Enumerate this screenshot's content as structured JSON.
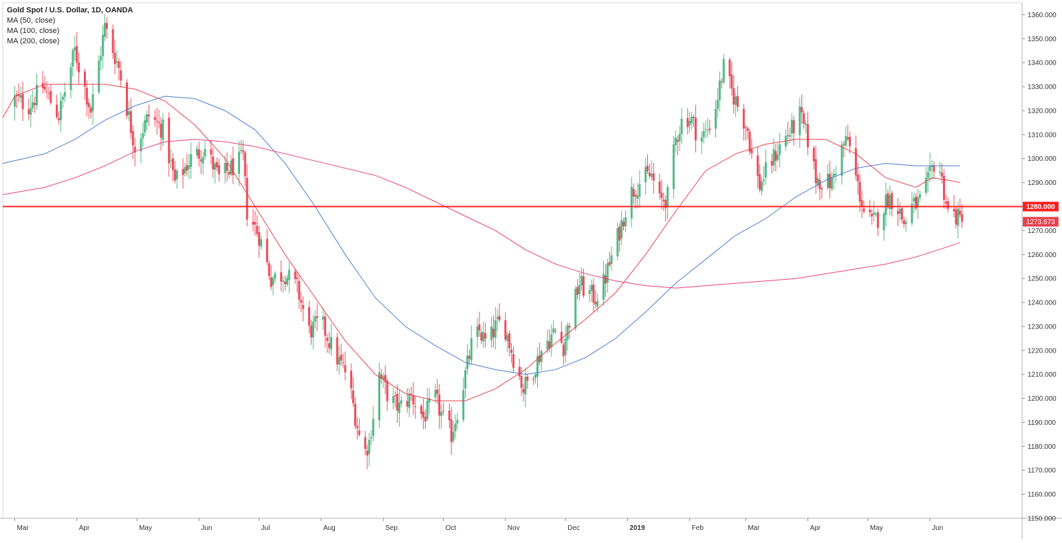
{
  "chart_data": {
    "type": "candlestick",
    "title": "Gold Spot / U.S. Dollar, 1D, OANDA",
    "indicators": [
      {
        "name": "MA (50, close)",
        "color": "#e8424e"
      },
      {
        "name": "MA (100, close)",
        "color": "#4a7bd0"
      },
      {
        "name": "MA (200, close)",
        "color": "#ea3f7a"
      }
    ],
    "ylim": [
      1150,
      1365
    ],
    "y_ticks": [
      "1360.000",
      "1350.000",
      "1340.000",
      "1330.000",
      "1320.000",
      "1310.000",
      "1300.000",
      "1290.000",
      "1280.000",
      "1270.000",
      "1260.000",
      "1250.000",
      "1240.000",
      "1230.000",
      "1220.000",
      "1210.000",
      "1200.000",
      "1190.000",
      "1180.000",
      "1170.000",
      "1160.000",
      "1150.000"
    ],
    "x_ticks": [
      {
        "label": "Mar",
        "day": 0,
        "bold": false
      },
      {
        "label": "Apr",
        "day": 31,
        "bold": false
      },
      {
        "label": "May",
        "day": 61,
        "bold": false
      },
      {
        "label": "Jun",
        "day": 92,
        "bold": false
      },
      {
        "label": "Jul",
        "day": 122,
        "bold": false
      },
      {
        "label": "Aug",
        "day": 153,
        "bold": false
      },
      {
        "label": "Sep",
        "day": 184,
        "bold": false
      },
      {
        "label": "Oct",
        "day": 214,
        "bold": false
      },
      {
        "label": "Nov",
        "day": 245,
        "bold": false
      },
      {
        "label": "Dec",
        "day": 275,
        "bold": false
      },
      {
        "label": "2019",
        "day": 306,
        "bold": true
      },
      {
        "label": "Feb",
        "day": 337,
        "bold": false
      },
      {
        "label": "Mar",
        "day": 365,
        "bold": false
      },
      {
        "label": "Apr",
        "day": 396,
        "bold": false
      },
      {
        "label": "May",
        "day": 426,
        "bold": false
      },
      {
        "label": "Jun",
        "day": 457,
        "bold": false
      }
    ],
    "xlim_days": [
      -6,
      503
    ],
    "horizontal_line": {
      "value": 1280,
      "label": "1280.000",
      "color": "#ff1f1f"
    },
    "last_price": {
      "value": 1273.673,
      "label": "1273.673",
      "color": "#e8424e"
    },
    "up_color": "#53b987",
    "down_color": "#eb4d5c",
    "close_path": [
      [
        0,
        1325
      ],
      [
        7,
        1322
      ],
      [
        14,
        1330
      ],
      [
        22,
        1318
      ],
      [
        30,
        1345
      ],
      [
        38,
        1320
      ],
      [
        45,
        1355
      ],
      [
        52,
        1338
      ],
      [
        60,
        1305
      ],
      [
        67,
        1318
      ],
      [
        74,
        1312
      ],
      [
        80,
        1290
      ],
      [
        88,
        1300
      ],
      [
        95,
        1304
      ],
      [
        102,
        1292
      ],
      [
        108,
        1296
      ],
      [
        114,
        1300
      ],
      [
        116,
        1278
      ],
      [
        122,
        1268
      ],
      [
        128,
        1250
      ],
      [
        135,
        1252
      ],
      [
        141,
        1246
      ],
      [
        147,
        1228
      ],
      [
        153,
        1232
      ],
      [
        160,
        1218
      ],
      [
        166,
        1210
      ],
      [
        170,
        1193
      ],
      [
        174,
        1176
      ],
      [
        177,
        1182
      ],
      [
        182,
        1210
      ],
      [
        187,
        1200
      ],
      [
        192,
        1196
      ],
      [
        198,
        1201
      ],
      [
        204,
        1192
      ],
      [
        210,
        1200
      ],
      [
        214,
        1191
      ],
      [
        218,
        1185
      ],
      [
        222,
        1198
      ],
      [
        228,
        1222
      ],
      [
        232,
        1228
      ],
      [
        236,
        1222
      ],
      [
        240,
        1230
      ],
      [
        244,
        1232
      ],
      [
        249,
        1217
      ],
      [
        254,
        1204
      ],
      [
        258,
        1210
      ],
      [
        264,
        1222
      ],
      [
        270,
        1228
      ],
      [
        274,
        1222
      ],
      [
        278,
        1236
      ],
      [
        282,
        1248
      ],
      [
        286,
        1244
      ],
      [
        290,
        1242
      ],
      [
        294,
        1248
      ],
      [
        297,
        1256
      ],
      [
        302,
        1270
      ],
      [
        307,
        1285
      ],
      [
        310,
        1288
      ],
      [
        314,
        1292
      ],
      [
        318,
        1293
      ],
      [
        322,
        1282
      ],
      [
        326,
        1284
      ],
      [
        330,
        1308
      ],
      [
        334,
        1318
      ],
      [
        338,
        1316
      ],
      [
        342,
        1308
      ],
      [
        346,
        1312
      ],
      [
        350,
        1322
      ],
      [
        354,
        1338
      ],
      [
        358,
        1328
      ],
      [
        362,
        1320
      ],
      [
        366,
        1312
      ],
      [
        369,
        1296
      ],
      [
        372,
        1289
      ],
      [
        376,
        1296
      ],
      [
        380,
        1302
      ],
      [
        384,
        1308
      ],
      [
        388,
        1312
      ],
      [
        392,
        1318
      ],
      [
        396,
        1308
      ],
      [
        400,
        1292
      ],
      [
        404,
        1290
      ],
      [
        408,
        1290
      ],
      [
        412,
        1303
      ],
      [
        416,
        1308
      ],
      [
        420,
        1292
      ],
      [
        424,
        1278
      ],
      [
        428,
        1273
      ],
      [
        432,
        1276
      ],
      [
        436,
        1284
      ],
      [
        440,
        1282
      ],
      [
        444,
        1273
      ],
      [
        448,
        1280
      ],
      [
        452,
        1282
      ],
      [
        456,
        1290
      ],
      [
        459,
        1298
      ],
      [
        462,
        1295
      ],
      [
        466,
        1278
      ],
      [
        470,
        1276
      ],
      [
        473,
        1273.673
      ]
    ],
    "ma_lines": [
      {
        "name": "MA (50, close)",
        "color": "#e8424e",
        "points": [
          [
            -6,
            1317
          ],
          [
            0,
            1326
          ],
          [
            15,
            1331
          ],
          [
            30,
            1331
          ],
          [
            45,
            1331
          ],
          [
            60,
            1329
          ],
          [
            75,
            1324
          ],
          [
            90,
            1314
          ],
          [
            105,
            1300
          ],
          [
            120,
            1280
          ],
          [
            135,
            1260
          ],
          [
            150,
            1242
          ],
          [
            165,
            1224
          ],
          [
            180,
            1210
          ],
          [
            195,
            1202
          ],
          [
            210,
            1199
          ],
          [
            225,
            1199
          ],
          [
            240,
            1204
          ],
          [
            255,
            1212
          ],
          [
            270,
            1223
          ],
          [
            285,
            1233
          ],
          [
            300,
            1244
          ],
          [
            315,
            1260
          ],
          [
            330,
            1278
          ],
          [
            345,
            1295
          ],
          [
            360,
            1302
          ],
          [
            375,
            1306
          ],
          [
            390,
            1308
          ],
          [
            405,
            1308
          ],
          [
            420,
            1302
          ],
          [
            435,
            1292
          ],
          [
            450,
            1288
          ],
          [
            458,
            1292
          ],
          [
            466,
            1291
          ],
          [
            472,
            1290
          ]
        ]
      },
      {
        "name": "MA (100, close)",
        "color": "#4a7bd0",
        "points": [
          [
            -6,
            1298
          ],
          [
            15,
            1302
          ],
          [
            30,
            1308
          ],
          [
            45,
            1316
          ],
          [
            60,
            1322
          ],
          [
            75,
            1326
          ],
          [
            90,
            1325
          ],
          [
            105,
            1320
          ],
          [
            120,
            1312
          ],
          [
            135,
            1298
          ],
          [
            150,
            1280
          ],
          [
            165,
            1260
          ],
          [
            180,
            1242
          ],
          [
            195,
            1230
          ],
          [
            210,
            1222
          ],
          [
            225,
            1215
          ],
          [
            240,
            1212
          ],
          [
            255,
            1210
          ],
          [
            270,
            1212
          ],
          [
            285,
            1217
          ],
          [
            300,
            1225
          ],
          [
            315,
            1236
          ],
          [
            330,
            1248
          ],
          [
            345,
            1258
          ],
          [
            360,
            1268
          ],
          [
            375,
            1275
          ],
          [
            390,
            1284
          ],
          [
            405,
            1291
          ],
          [
            420,
            1296
          ],
          [
            435,
            1298
          ],
          [
            450,
            1297
          ],
          [
            465,
            1297
          ],
          [
            472,
            1297
          ]
        ]
      },
      {
        "name": "MA (200, close)",
        "color": "#ea3f7a",
        "points": [
          [
            -6,
            1285
          ],
          [
            15,
            1288
          ],
          [
            30,
            1292
          ],
          [
            45,
            1297
          ],
          [
            60,
            1303
          ],
          [
            75,
            1307
          ],
          [
            90,
            1308
          ],
          [
            105,
            1307
          ],
          [
            120,
            1305
          ],
          [
            135,
            1302
          ],
          [
            150,
            1299
          ],
          [
            165,
            1296
          ],
          [
            180,
            1293
          ],
          [
            195,
            1288
          ],
          [
            210,
            1282
          ],
          [
            225,
            1276
          ],
          [
            240,
            1270
          ],
          [
            255,
            1262
          ],
          [
            270,
            1256
          ],
          [
            285,
            1252
          ],
          [
            300,
            1249
          ],
          [
            315,
            1247
          ],
          [
            330,
            1246
          ],
          [
            345,
            1247
          ],
          [
            360,
            1248
          ],
          [
            375,
            1249
          ],
          [
            390,
            1250
          ],
          [
            405,
            1252
          ],
          [
            420,
            1254
          ],
          [
            435,
            1256
          ],
          [
            450,
            1259
          ],
          [
            465,
            1263
          ],
          [
            472,
            1265
          ]
        ]
      }
    ]
  }
}
